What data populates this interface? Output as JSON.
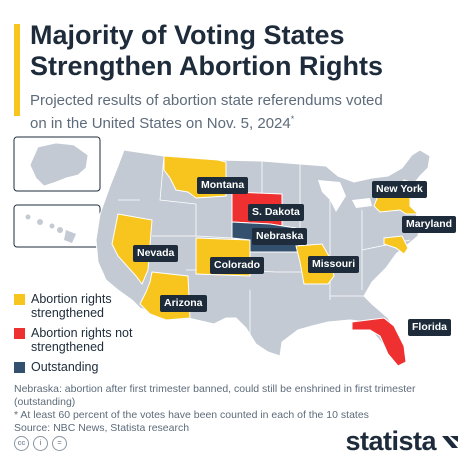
{
  "header": {
    "title_line1": "Majority of Voting States",
    "title_line2": "Strengthen Abortion Rights",
    "subtitle_line1": "Projected results of abortion state referendums voted",
    "subtitle_line2": "on in the United States on Nov. 5, 2024",
    "subtitle_mark": "*"
  },
  "legend": {
    "items": [
      {
        "label": "Abortion rights strengthened",
        "color": "#f7c51e"
      },
      {
        "label": "Abortion rights not strengthened",
        "color": "#ee3030"
      },
      {
        "label": "Outstanding",
        "color": "#33506e"
      }
    ]
  },
  "colors": {
    "base_state": "#c3cad3",
    "state_border": "#ffffff",
    "label_bg": "#1d2b3a",
    "accent": "#f7c51e"
  },
  "states": [
    {
      "name": "Montana",
      "result": "strengthened"
    },
    {
      "name": "S. Dakota",
      "result": "not strengthened"
    },
    {
      "name": "Nebraska",
      "result": "outstanding"
    },
    {
      "name": "Nevada",
      "result": "strengthened"
    },
    {
      "name": "Colorado",
      "result": "strengthened"
    },
    {
      "name": "Missouri",
      "result": "strengthened"
    },
    {
      "name": "Arizona",
      "result": "strengthened"
    },
    {
      "name": "New York",
      "result": "strengthened"
    },
    {
      "name": "Maryland",
      "result": "strengthened"
    },
    {
      "name": "Florida",
      "result": "not strengthened"
    }
  ],
  "footnotes": {
    "line1": "Nebraska: abortion after first trimester banned, could still be enshrined in first trimester (outstanding)",
    "line2": "* At least 60 percent of the votes have been counted in each of the 10 states",
    "source": "Source: NBC News, Statista research"
  },
  "footer": {
    "brand": "statista"
  },
  "icons": [
    "cc-icon",
    "person-icon",
    "equals-icon",
    "statista-logo-icon"
  ]
}
